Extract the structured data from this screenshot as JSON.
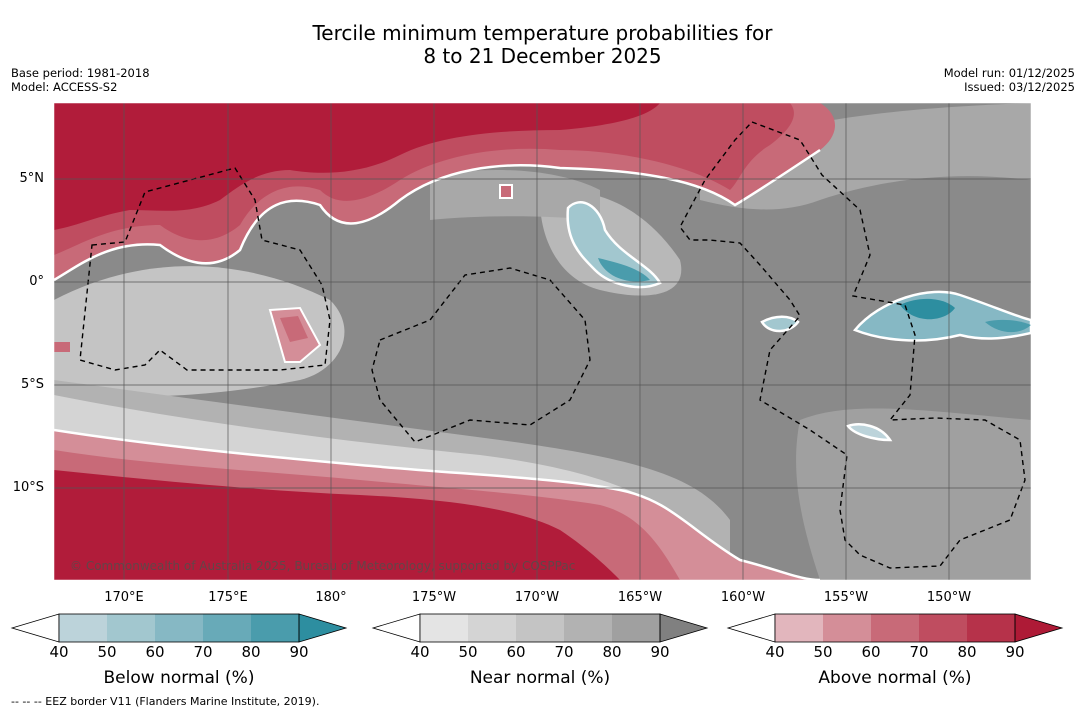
{
  "title": {
    "line1": "Tercile minimum temperature probabilities for",
    "line2": "8 to 21 December 2025"
  },
  "meta_left": {
    "base_period": "Base period: 1981-2018",
    "model": "Model: ACCESS-S2"
  },
  "meta_right": {
    "model_run": "Model run: 01/12/2025",
    "issued": "Issued: 03/12/2025"
  },
  "map": {
    "latitude_labels": [
      "5°N",
      "0°",
      "5°S",
      "10°S"
    ],
    "longitude_labels": [
      "170°E",
      "175°E",
      "180°",
      "175°W",
      "170°W",
      "165°W",
      "160°W",
      "155°W",
      "150°W"
    ],
    "copyright": "© Commonwealth of Australia 2025, Bureau of Meteorology, supported by COSPPac",
    "colors": {
      "ocean_grey": "#8a8a8a",
      "above_90": "#b11c3a",
      "below_80": "#3a98aa"
    }
  },
  "colorbars": [
    {
      "label": "Below normal (%)",
      "ticks": [
        "40",
        "50",
        "60",
        "70",
        "80",
        "90"
      ],
      "colors": [
        "#bcd3da",
        "#a2c7cf",
        "#86b8c4",
        "#68aab8",
        "#4a9cac",
        "#2d8ea0"
      ]
    },
    {
      "label": "Near normal (%)",
      "ticks": [
        "40",
        "50",
        "60",
        "70",
        "80",
        "90"
      ],
      "colors": [
        "#e4e4e4",
        "#d4d4d4",
        "#c4c4c4",
        "#b2b2b2",
        "#a0a0a0",
        "#808080"
      ]
    },
    {
      "label": "Above normal (%)",
      "ticks": [
        "40",
        "50",
        "60",
        "70",
        "80",
        "90"
      ],
      "colors": [
        "#e2b6bd",
        "#d48e98",
        "#c86a78",
        "#bf4d60",
        "#b6324a",
        "#ae1a36"
      ]
    }
  ],
  "footer": "--  --  -- EEZ border V11 (Flanders Marine Institute, 2019)."
}
